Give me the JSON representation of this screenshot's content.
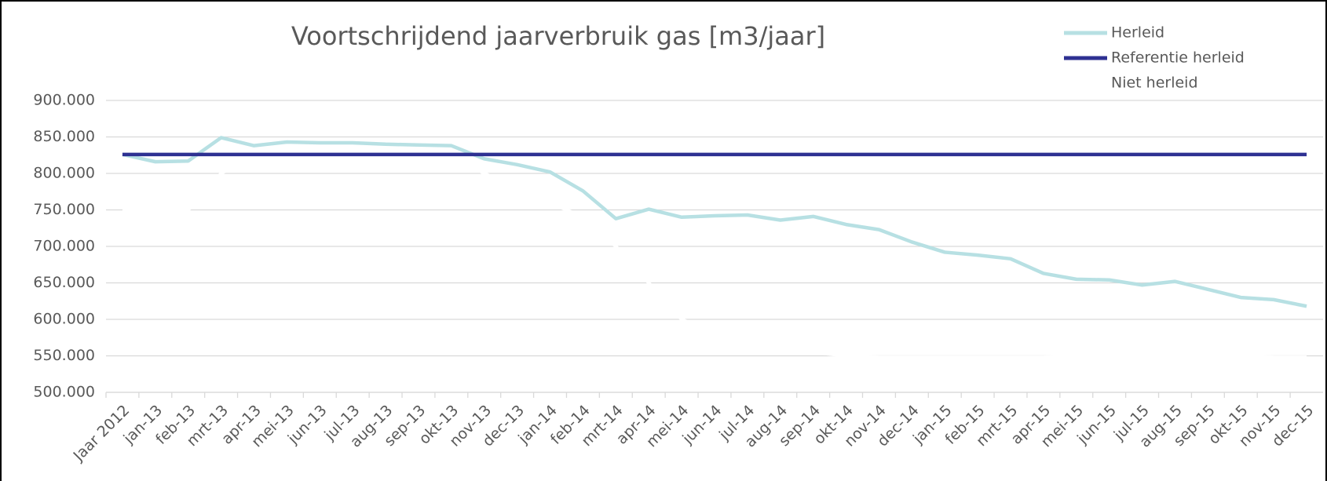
{
  "chart_data": {
    "type": "line",
    "title": "Voortschrijdend jaarverbruik gas [m3/jaar]",
    "categories": [
      "Jaar 2012",
      "jan-13",
      "feb-13",
      "mrt-13",
      "apr-13",
      "mei-13",
      "jun-13",
      "jul-13",
      "aug-13",
      "sep-13",
      "okt-13",
      "nov-13",
      "dec-13",
      "jan-14",
      "feb-14",
      "mrt-14",
      "apr-14",
      "mei-14",
      "jun-14",
      "jul-14",
      "aug-14",
      "sep-14",
      "okt-14",
      "nov-14",
      "dec-14",
      "jan-15",
      "feb-15",
      "mrt-15",
      "apr-15",
      "mei-15",
      "jun-15",
      "jul-15",
      "aug-15",
      "sep-15",
      "okt-15",
      "nov-15",
      "dec-15"
    ],
    "series": [
      {
        "name": "Herleid",
        "color": "#b7e0e3",
        "values": [
          826000,
          816000,
          817000,
          849000,
          838000,
          843000,
          842000,
          842000,
          840000,
          839000,
          838000,
          820000,
          812000,
          802000,
          776000,
          738000,
          751000,
          740000,
          742000,
          743000,
          736000,
          741000,
          730000,
          723000,
          706000,
          692000,
          688000,
          683000,
          663000,
          655000,
          654000,
          647000,
          652000,
          641000,
          630000,
          627000,
          618000
        ]
      },
      {
        "name": "Referentie herleid",
        "color": "#2e3192",
        "values": [
          826000,
          826000,
          826000,
          826000,
          826000,
          826000,
          826000,
          826000,
          826000,
          826000,
          826000,
          826000,
          826000,
          826000,
          826000,
          826000,
          826000,
          826000,
          826000,
          826000,
          826000,
          826000,
          826000,
          826000,
          826000,
          826000,
          826000,
          826000,
          826000,
          826000,
          826000,
          826000,
          826000,
          826000,
          826000,
          826000,
          826000
        ]
      },
      {
        "name": "Niet herleid",
        "color": "#ffffff",
        "values": [
          750000,
          750000,
          750000,
          800000,
          826000,
          838000,
          840000,
          830000,
          830000,
          830000,
          826000,
          800000,
          780000,
          760000,
          740000,
          700000,
          650000,
          600000,
          580000,
          570000,
          560000,
          555000,
          550000,
          548000,
          548000,
          548000,
          548000,
          548000,
          548000,
          550000,
          550000,
          550000,
          550000,
          550000,
          550000,
          548000,
          548000
        ]
      }
    ],
    "ylim": [
      500000,
      900000
    ],
    "yticks": [
      {
        "value": 500000,
        "label": "500.000"
      },
      {
        "value": 550000,
        "label": "550.000"
      },
      {
        "value": 600000,
        "label": "600.000"
      },
      {
        "value": 650000,
        "label": "650.000"
      },
      {
        "value": 700000,
        "label": "700.000"
      },
      {
        "value": 750000,
        "label": "750.000"
      },
      {
        "value": 800000,
        "label": "800.000"
      },
      {
        "value": 850000,
        "label": "850.000"
      },
      {
        "value": 900000,
        "label": "900.000"
      }
    ],
    "grid": true
  }
}
